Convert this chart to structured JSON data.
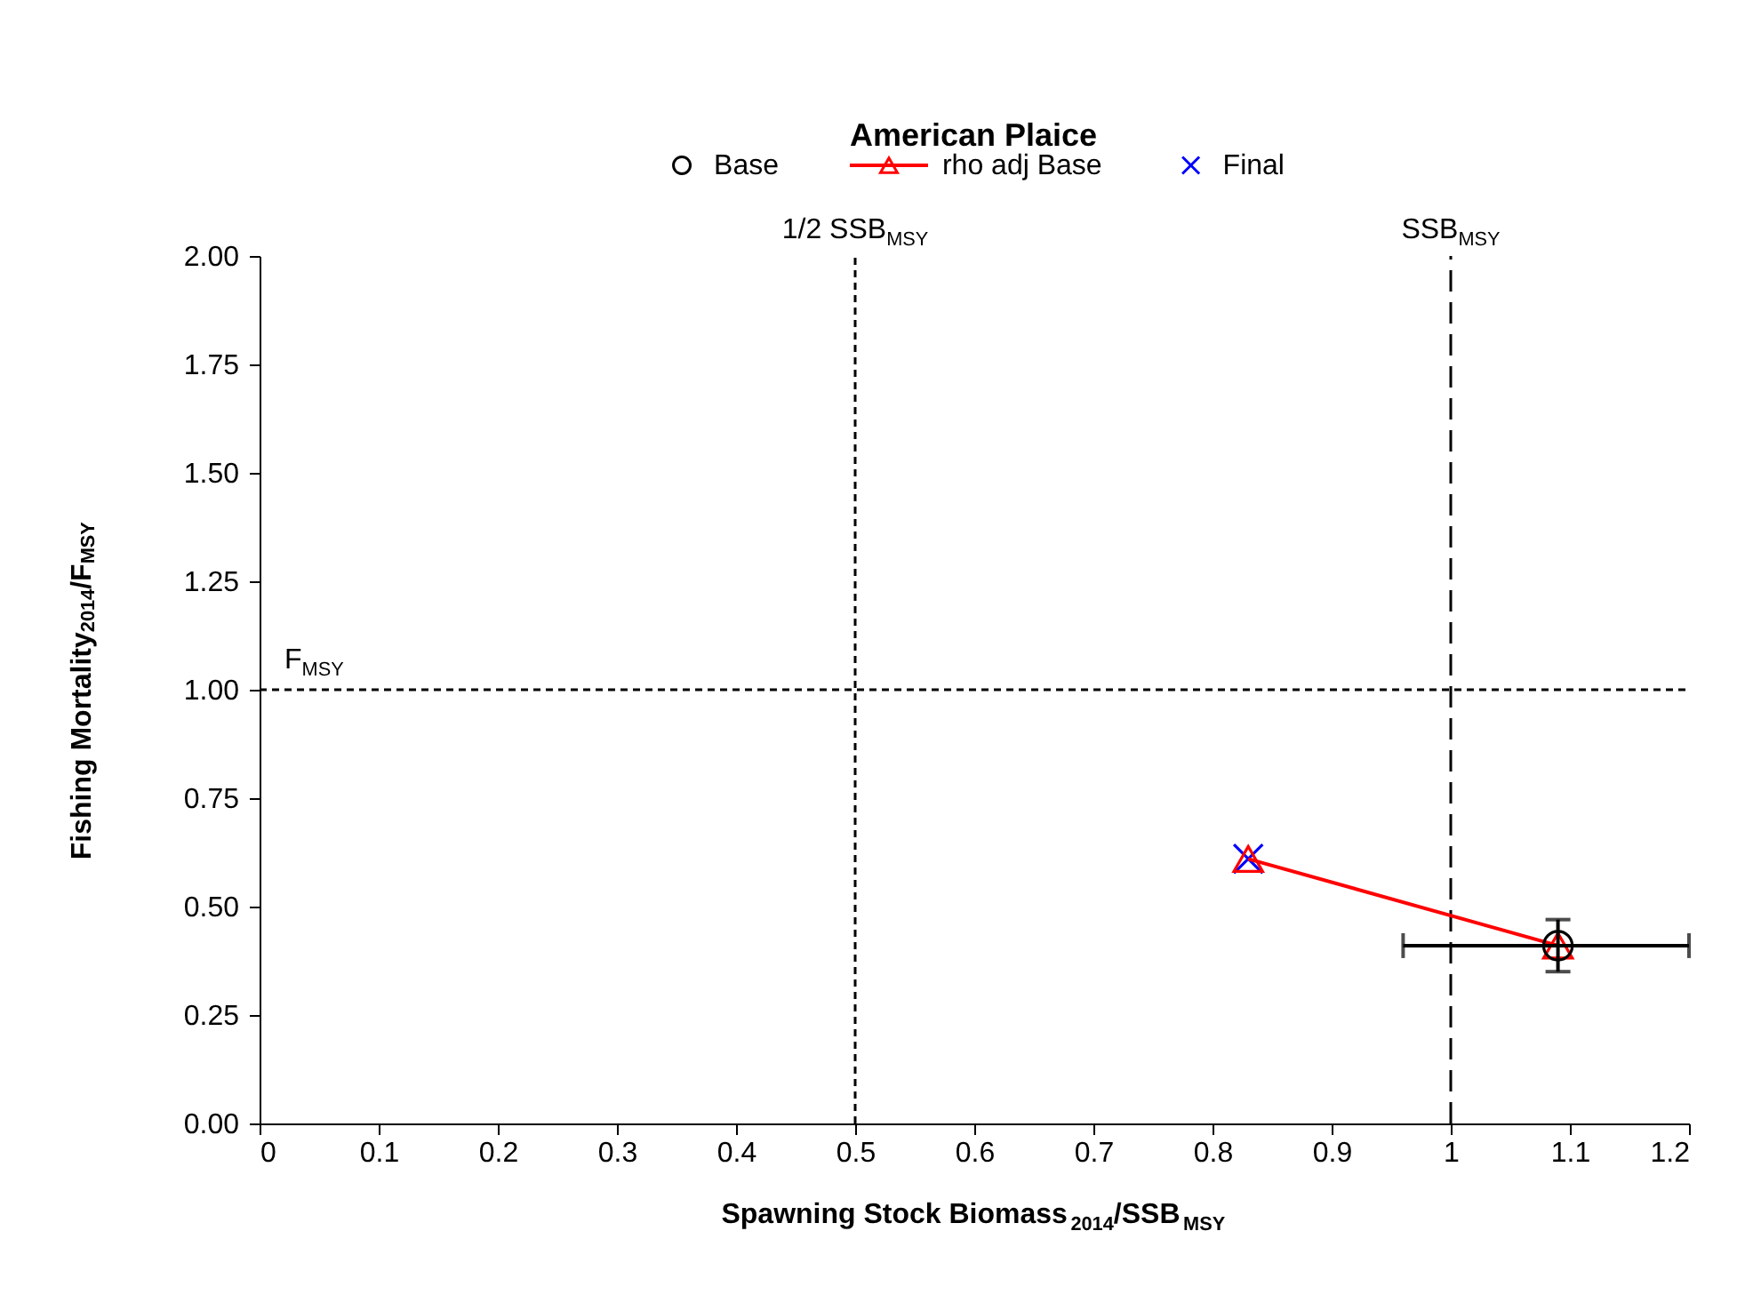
{
  "chart_data": {
    "type": "scatter",
    "title": "American Plaice",
    "xlabel": "Spawning Stock Biomass$_{2014}$/SSB$_{MSY}$",
    "ylabel": "Fishing Mortality$_{2014}$/F$_{MSY}$",
    "xlim": [
      0,
      1.2
    ],
    "xticks": [
      0,
      0.1,
      0.2,
      0.3,
      0.4,
      0.5,
      0.6,
      0.7,
      0.8,
      0.9,
      1,
      1.1,
      1.2
    ],
    "ylim": [
      0,
      2
    ],
    "yticks": [
      {
        "value": 0,
        "label": "0.00"
      },
      {
        "value": 0.25,
        "label": "0.25"
      },
      {
        "value": 0.5,
        "label": "0.50"
      },
      {
        "value": 0.75,
        "label": "0.75"
      },
      {
        "value": 1,
        "label": "1.00"
      },
      {
        "value": 1.25,
        "label": "1.25"
      },
      {
        "value": 1.5,
        "label": "1.50"
      },
      {
        "value": 1.75,
        "label": "1.75"
      },
      {
        "value": 2,
        "label": "2.00"
      }
    ],
    "grid": false,
    "legend": "top",
    "series": [
      {
        "name": "Base",
        "color": "#000000",
        "marker": "circle",
        "values": [
          null,
          0.41
        ],
        "errors": [
          null,
          [
            0.35,
            0.47
          ]
        ],
        "xerrors": [
          null,
          [
            0.96,
            1.2
          ]
        ]
      },
      {
        "name": "rho adj Base",
        "type": "line",
        "color": "#ff0000",
        "marker": "triangle",
        "line_style": "solid",
        "values": [
          0.61,
          0.41
        ]
      },
      {
        "name": "Final",
        "color": "#0000ff",
        "marker": "cross",
        "values": [
          0.61,
          null
        ]
      }
    ],
    "x": [
      0.83,
      1.09
    ],
    "ref_lines": [
      {
        "axis": "x",
        "value": 0.5,
        "label": "1/2 SSB$_{MSY}$",
        "color": "#000000",
        "line_style": "dotted"
      },
      {
        "axis": "x",
        "value": 1,
        "label": "SSB$_{MSY}$",
        "color": "#000000",
        "line_style": "dashed"
      },
      {
        "axis": "y",
        "value": 1,
        "label": "F$_{MSY}$",
        "color": "#000000",
        "line_style": "dotted"
      }
    ]
  }
}
